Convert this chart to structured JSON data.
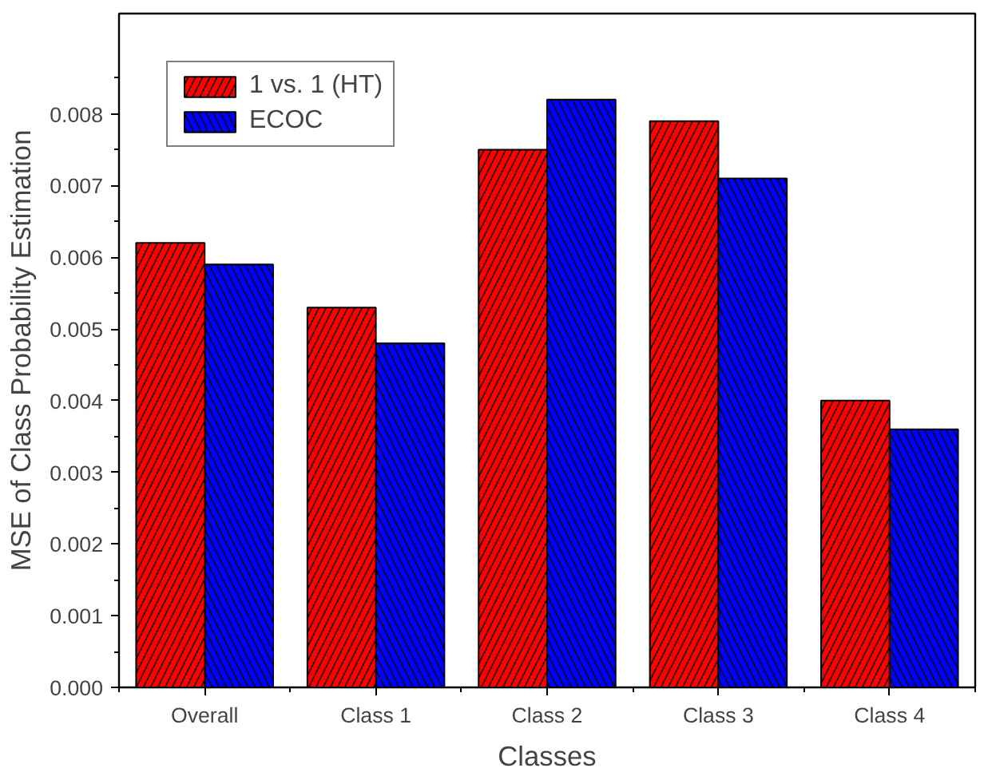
{
  "chart_data": {
    "type": "bar",
    "xlabel": "Classes",
    "ylabel": "MSE of Class Probability Estimation",
    "categories": [
      "Overall",
      "Class 1",
      "Class 2",
      "Class 3",
      "Class 4"
    ],
    "series": [
      {
        "name": "1 vs. 1 (HT)",
        "color": "#ff0000",
        "values": [
          0.0062,
          0.0053,
          0.0075,
          0.0079,
          0.004
        ]
      },
      {
        "name": "ECOC",
        "color": "#0000ff",
        "values": [
          0.0059,
          0.0048,
          0.0082,
          0.0071,
          0.0036
        ]
      }
    ],
    "ylim": [
      0,
      0.0094
    ],
    "yticks": [
      {
        "value": 0,
        "label": "0.000"
      },
      {
        "value": 0.001,
        "label": "0.001"
      },
      {
        "value": 0.002,
        "label": "0.002"
      },
      {
        "value": 0.003,
        "label": "0.003"
      },
      {
        "value": 0.004,
        "label": "0.004"
      },
      {
        "value": 0.005,
        "label": "0.005"
      },
      {
        "value": 0.006,
        "label": "0.006"
      },
      {
        "value": 0.007,
        "label": "0.007"
      },
      {
        "value": 0.008,
        "label": "0.008"
      }
    ],
    "grid": false,
    "legend": "top left"
  }
}
